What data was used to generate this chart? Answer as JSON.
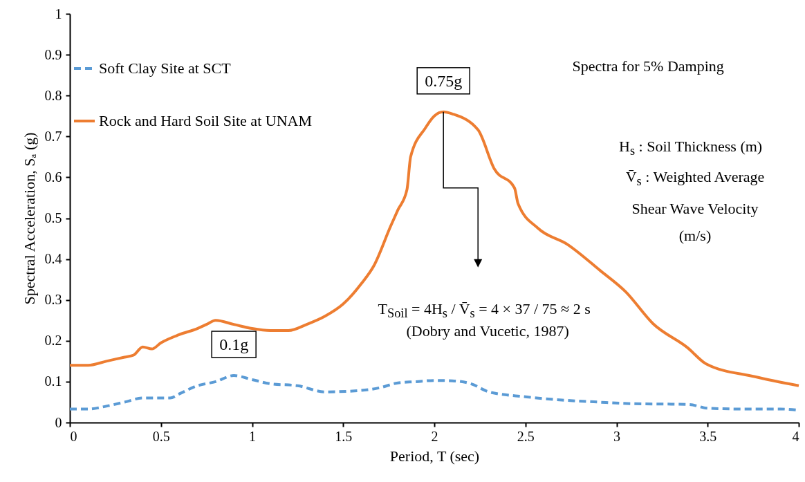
{
  "chart_data": {
    "type": "line",
    "xlabel": "Period, T (sec)",
    "ylabel": "Spectral Acceleration, Sₐ (g)",
    "xlim": [
      0,
      4
    ],
    "xticks": [
      0,
      0.5,
      1,
      1.5,
      2,
      2.5,
      3,
      3.5,
      4
    ],
    "ylim": [
      0,
      1
    ],
    "yticks": [
      0,
      0.1,
      0.2,
      0.3,
      0.4,
      0.5,
      0.6,
      0.7,
      0.8,
      0.9,
      1
    ],
    "grid": false,
    "legend": "top left",
    "marker": "none",
    "series": [
      {
        "name": "Soft Clay Site at SCT",
        "color": "#5b9bd5",
        "line_style": "dashed",
        "x": [
          0,
          0.1,
          0.2,
          0.3,
          0.4,
          0.55,
          0.6,
          0.7,
          0.8,
          0.9,
          1.0,
          1.1,
          1.25,
          1.4,
          1.55,
          1.7,
          1.8,
          1.9,
          2.0,
          2.1,
          2.2,
          2.3,
          2.5,
          2.7,
          2.9,
          3.1,
          3.3,
          3.4,
          3.5,
          3.7,
          3.9,
          4.0
        ],
        "values": [
          0.033,
          0.033,
          0.04,
          0.05,
          0.06,
          0.06,
          0.07,
          0.09,
          0.1,
          0.115,
          0.105,
          0.095,
          0.09,
          0.075,
          0.077,
          0.085,
          0.097,
          0.1,
          0.103,
          0.102,
          0.095,
          0.075,
          0.063,
          0.055,
          0.05,
          0.046,
          0.045,
          0.044,
          0.035,
          0.033,
          0.033,
          0.03
        ]
      },
      {
        "name": "Rock and Hard Soil Site at UNAM",
        "color": "#ed7d31",
        "line_style": "solid",
        "x": [
          0,
          0.1,
          0.2,
          0.3,
          0.35,
          0.4,
          0.45,
          0.5,
          0.6,
          0.7,
          0.75,
          0.8,
          0.9,
          1.0,
          1.1,
          1.2,
          1.3,
          1.4,
          1.5,
          1.6,
          1.67,
          1.76,
          1.8,
          1.85,
          1.87,
          1.95,
          2.0,
          2.05,
          2.1,
          2.24,
          2.33,
          2.44,
          2.46,
          2.57,
          2.73,
          2.91,
          3.05,
          3.2,
          3.39,
          3.49,
          3.76,
          4.0
        ],
        "values": [
          0.14,
          0.14,
          0.15,
          0.16,
          0.165,
          0.185,
          0.18,
          0.195,
          0.215,
          0.23,
          0.24,
          0.25,
          0.24,
          0.23,
          0.225,
          0.225,
          0.24,
          0.26,
          0.29,
          0.34,
          0.385,
          0.48,
          0.52,
          0.57,
          0.65,
          0.72,
          0.75,
          0.76,
          0.755,
          0.716,
          0.62,
          0.574,
          0.535,
          0.475,
          0.436,
          0.372,
          0.32,
          0.242,
          0.183,
          0.144,
          0.112,
          0.09
        ]
      }
    ],
    "annotations": [
      {
        "text": "0.75g",
        "x": 2.05,
        "y": 0.76
      },
      {
        "text": "0.1g",
        "x": 0.9,
        "y": 0.115
      },
      "Spectra for 5% Damping",
      "H$_{s}$ : Soil Thickness (m)",
      "V̄$_{s}$ : Weighted Average Shear Wave Velocity (m/s)",
      "T$_{Soil}$ = 4H$_{s}$ / V̄$_{s}$ = 4 × 37 / 75 ≈ 2 s",
      "(Dobry and Vucetic, 1987)"
    ]
  }
}
